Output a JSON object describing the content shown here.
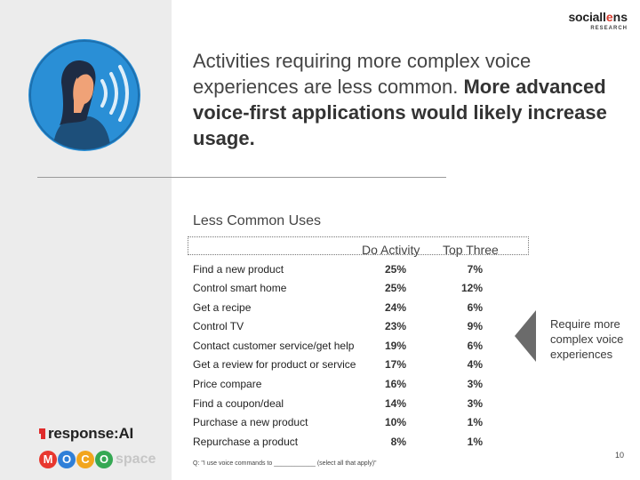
{
  "brand": {
    "social": "social",
    "lens_l": "l",
    "lens_o": "e",
    "lens_rest": "ns",
    "research": "RESEARCH"
  },
  "headline": {
    "regular": "Activities requiring more complex voice experiences are less common.",
    "bold": "More advanced voice-first applications would likely increase usage."
  },
  "section_title": "Less Common Uses",
  "table": {
    "headers": {
      "activity": "",
      "do_activity": "Do Activity",
      "top_three": "Top Three"
    },
    "rows": [
      {
        "activity": "Find a new product",
        "do_activity": "25%",
        "top_three": "7%"
      },
      {
        "activity": "Control smart home",
        "do_activity": "25%",
        "top_three": "12%"
      },
      {
        "activity": "Get a recipe",
        "do_activity": "24%",
        "top_three": "6%"
      },
      {
        "activity": "Control TV",
        "do_activity": "23%",
        "top_three": "9%"
      },
      {
        "activity": "Contact customer service/get help",
        "do_activity": "19%",
        "top_three": "6%"
      },
      {
        "activity": "Get a review for product or service",
        "do_activity": "17%",
        "top_three": "4%"
      },
      {
        "activity": "Price compare",
        "do_activity": "16%",
        "top_three": "3%"
      },
      {
        "activity": "Find a coupon/deal",
        "do_activity": "14%",
        "top_three": "3%"
      },
      {
        "activity": "Purchase a new product",
        "do_activity": "10%",
        "top_three": "1%"
      },
      {
        "activity": "Repurchase a product",
        "do_activity": "8%",
        "top_three": "1%"
      }
    ]
  },
  "callout": {
    "text": "Require more complex voice experiences"
  },
  "footnote": "Q: \"I use voice commands to ____________ (select all that apply)\"",
  "page_number": "10",
  "logos": {
    "response": "response:AI",
    "moco_letters": [
      "M",
      "O",
      "C",
      "O"
    ],
    "moco_colors": [
      "#e8382f",
      "#2f7fd8",
      "#f2a51c",
      "#35a853"
    ],
    "moco_space": "space"
  },
  "colors": {
    "avatar_bg": "#2a8fd6",
    "avatar_ring": "#1c6fae",
    "callout_arrow": "#6b6b6b",
    "left_band": "#ececec"
  }
}
